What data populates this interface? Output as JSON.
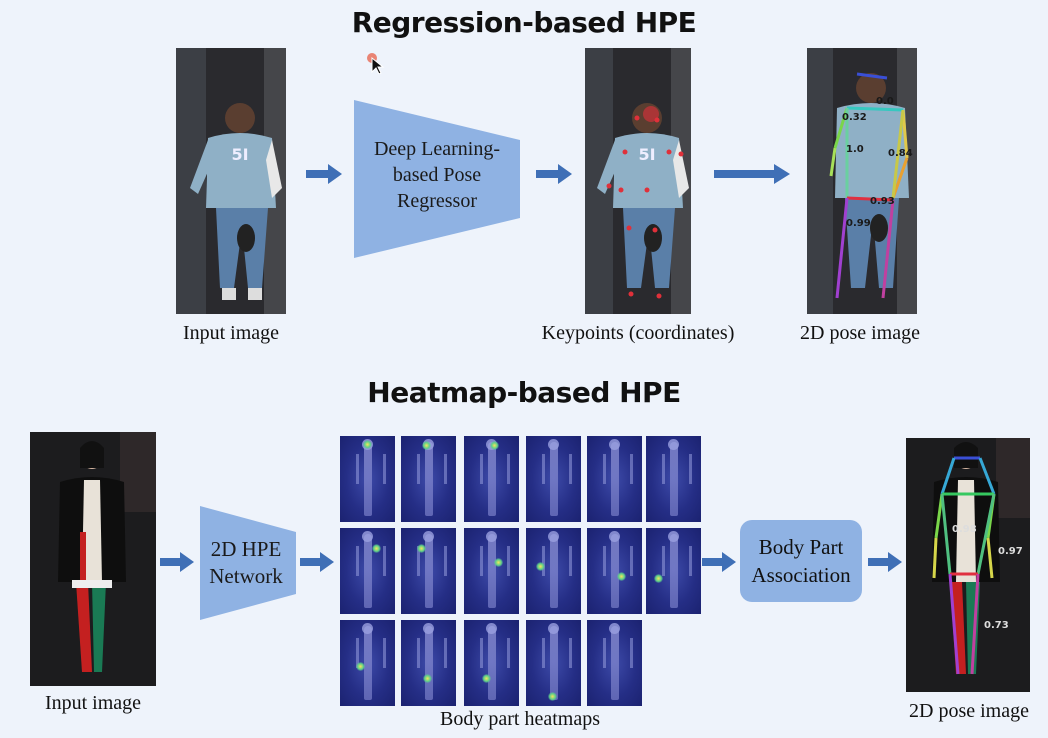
{
  "regression": {
    "title": "Regression-based HPE",
    "input_caption": "Input image",
    "regressor_line1": "Deep Learning-",
    "regressor_line2": "based Pose",
    "regressor_line3": "Regressor",
    "keypoints_caption": "Keypoints (coordinates)",
    "pose_caption": "2D pose image",
    "scores": [
      "0.32",
      "0.0",
      "1.0",
      "0.84",
      "0.99",
      "0.93"
    ]
  },
  "heatmap": {
    "title": "Heatmap-based HPE",
    "input_caption": "Input image",
    "network_line1": "2D HPE",
    "network_line2": "Network",
    "heatmaps_caption": "Body part heatmaps",
    "association_line1": "Body Part",
    "association_line2": "Association",
    "pose_caption": "2D pose image",
    "scores": [
      "0.98",
      "0.97",
      "0.73"
    ]
  },
  "colors": {
    "arrow": "#3f6fb6",
    "block": "#8fb2e3",
    "background": "#eef3fb",
    "heatmap": "#252e86"
  },
  "icons": [
    "cursor-icon"
  ]
}
